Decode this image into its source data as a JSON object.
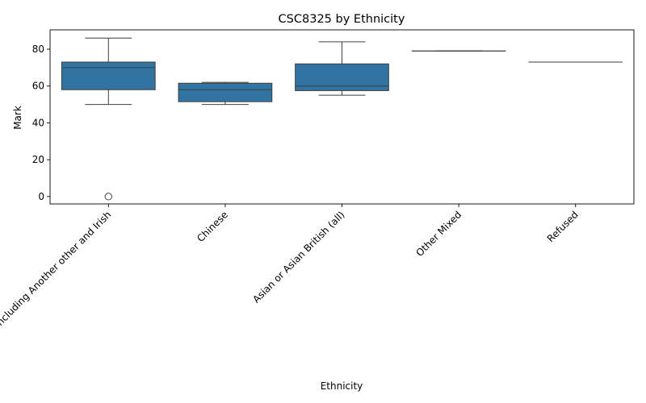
{
  "chart_data": {
    "type": "box",
    "title": "CSC8325 by Ethnicity",
    "xlabel": "Ethnicity",
    "ylabel": "Mark",
    "ylim": [
      -4,
      90.5
    ],
    "yticks": [
      0,
      20,
      40,
      60,
      80
    ],
    "grid": false,
    "box_color": "#3274a1",
    "line_color": "#3d3d3d",
    "categories": [
      "White including Another other and Irish",
      "Chinese",
      "Asian or Asian British (all)",
      "Other Mixed",
      "Refused"
    ],
    "boxes": [
      {
        "whislo": 50,
        "q1": 58,
        "med": 70,
        "q3": 73,
        "whishi": 86,
        "fliers": [
          0
        ]
      },
      {
        "whislo": 50,
        "q1": 51.5,
        "med": 58,
        "q3": 61.5,
        "whishi": 62,
        "fliers": []
      },
      {
        "whislo": 55,
        "q1": 57.5,
        "med": 60,
        "q3": 72,
        "whishi": 84,
        "fliers": []
      },
      {
        "whislo": 79,
        "q1": 79,
        "med": 79,
        "q3": 79,
        "whishi": 79,
        "fliers": []
      },
      {
        "whislo": 73,
        "q1": 73,
        "med": 73,
        "q3": 73,
        "whishi": 73,
        "fliers": []
      }
    ]
  }
}
